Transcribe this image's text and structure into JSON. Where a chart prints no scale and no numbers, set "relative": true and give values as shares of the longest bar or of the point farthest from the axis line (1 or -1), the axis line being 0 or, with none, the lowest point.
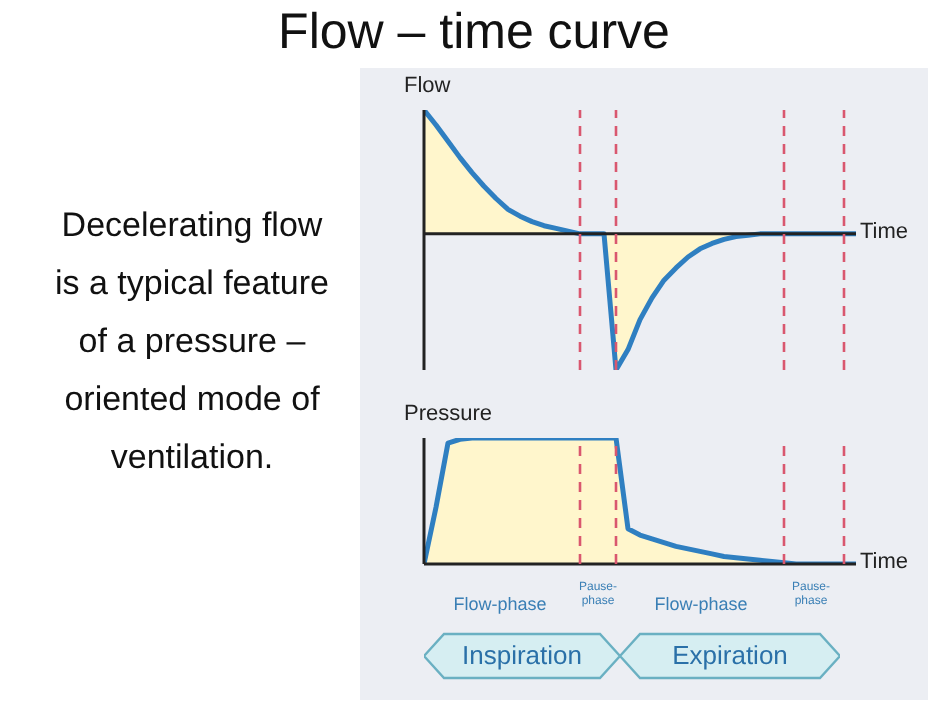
{
  "chart_data": [
    {
      "type": "area",
      "title": "Flow – time curve",
      "ylabel": "Flow",
      "xlabel": "Time",
      "relative": true,
      "tick_labels": false,
      "grid": "x",
      "annotations": [
        "Decelerating flow is a typical feature of a pressure – oriented mode of ventilation."
      ],
      "categories": [
        null,
        null,
        null,
        null,
        null,
        null,
        null,
        null,
        null,
        null,
        null,
        null,
        null,
        null,
        null,
        null,
        null,
        null,
        null,
        null,
        null,
        null,
        null,
        null,
        null,
        null,
        null,
        null,
        null,
        null,
        null,
        null,
        null,
        null,
        null,
        null,
        null
      ],
      "series": [
        {
          "color": "#fff6cc",
          "values": [
            0.91,
            0.8,
            0.68,
            0.56,
            0.45,
            0.35,
            0.26,
            0.18,
            0.13,
            0.09,
            0.06,
            0.04,
            0.02,
            0,
            0,
            0,
            -1,
            -0.85,
            -0.63,
            -0.47,
            -0.34,
            -0.25,
            -0.17,
            -0.11,
            -0.07,
            -0.04,
            -0.02,
            -0.01,
            0,
            0,
            0,
            0,
            0,
            0,
            0,
            0,
            0
          ]
        }
      ]
    },
    {
      "type": "area",
      "ylabel": "Pressure",
      "xlabel": "Time",
      "relative": true,
      "tick_labels": false,
      "grid": "x",
      "annotations": [
        "Flow-phase",
        "Pause-phase",
        "Flow-phase",
        "Pause-phase",
        "Inspiration",
        "Expiration"
      ],
      "categories": [
        null,
        null,
        null,
        null,
        null,
        null,
        null,
        null,
        null,
        null,
        null,
        null,
        null,
        null,
        null,
        null,
        null,
        null,
        null,
        null,
        null,
        null,
        null,
        null,
        null,
        null,
        null,
        null,
        null,
        null,
        null,
        null,
        null,
        null,
        null,
        null,
        null
      ],
      "series": [
        {
          "color": "#fff6cc",
          "values": [
            0,
            0.45,
            0.96,
            0.99,
            1,
            1,
            1,
            1,
            1,
            1,
            1,
            1,
            1,
            1,
            1,
            1,
            1,
            0.28,
            0.23,
            0.2,
            0.17,
            0.14,
            0.12,
            0.1,
            0.08,
            0.06,
            0.05,
            0.04,
            0.03,
            0.02,
            0.01,
            0,
            0,
            0,
            0,
            0,
            0
          ]
        }
      ]
    }
  ]
}
